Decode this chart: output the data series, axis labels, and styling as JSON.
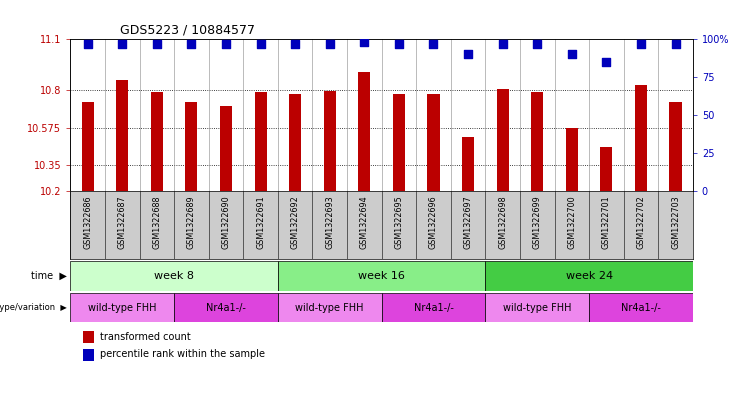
{
  "title": "GDS5223 / 10884577",
  "samples": [
    "GSM1322686",
    "GSM1322687",
    "GSM1322688",
    "GSM1322689",
    "GSM1322690",
    "GSM1322691",
    "GSM1322692",
    "GSM1322693",
    "GSM1322694",
    "GSM1322695",
    "GSM1322696",
    "GSM1322697",
    "GSM1322698",
    "GSM1322699",
    "GSM1322700",
    "GSM1322701",
    "GSM1322702",
    "GSM1322703"
  ],
  "transformed_counts": [
    10.73,
    10.855,
    10.785,
    10.73,
    10.705,
    10.785,
    10.775,
    10.795,
    10.905,
    10.775,
    10.775,
    10.52,
    10.805,
    10.785,
    10.575,
    10.46,
    10.83,
    10.73
  ],
  "percentile_ranks": [
    97,
    97,
    97,
    97,
    97,
    97,
    97,
    97,
    98,
    97,
    97,
    90,
    97,
    97,
    90,
    85,
    97,
    97
  ],
  "ylim_left": [
    10.2,
    11.1
  ],
  "ylim_right": [
    0,
    100
  ],
  "yticks_left": [
    10.2,
    10.35,
    10.575,
    10.8,
    11.1
  ],
  "yticks_right": [
    0,
    25,
    50,
    75,
    100
  ],
  "ytick_labels_left": [
    "10.2",
    "10.35",
    "10.575",
    "10.8",
    "11.1"
  ],
  "ytick_labels_right": [
    "0",
    "25",
    "50",
    "75",
    "100%"
  ],
  "bar_color": "#bb0000",
  "dot_color": "#0000bb",
  "grid_color": "#000000",
  "time_row": [
    {
      "label": "week 8",
      "start": 0,
      "end": 6,
      "color": "#ccffcc"
    },
    {
      "label": "week 16",
      "start": 6,
      "end": 12,
      "color": "#88ee88"
    },
    {
      "label": "week 24",
      "start": 12,
      "end": 18,
      "color": "#44cc44"
    }
  ],
  "geno_row": [
    {
      "label": "wild-type FHH",
      "start": 0,
      "end": 3,
      "color": "#ee88ee"
    },
    {
      "label": "Nr4a1-/-",
      "start": 3,
      "end": 6,
      "color": "#dd44dd"
    },
    {
      "label": "wild-type FHH",
      "start": 6,
      "end": 9,
      "color": "#ee88ee"
    },
    {
      "label": "Nr4a1-/-",
      "start": 9,
      "end": 12,
      "color": "#dd44dd"
    },
    {
      "label": "wild-type FHH",
      "start": 12,
      "end": 15,
      "color": "#ee88ee"
    },
    {
      "label": "Nr4a1-/-",
      "start": 15,
      "end": 18,
      "color": "#dd44dd"
    }
  ],
  "legend_items": [
    {
      "label": "transformed count",
      "color": "#bb0000"
    },
    {
      "label": "percentile rank within the sample",
      "color": "#0000bb"
    }
  ],
  "bar_width": 0.35,
  "dot_size": 28,
  "background_color": "#ffffff",
  "label_bg_color": "#cccccc",
  "sep_color": "#888888"
}
